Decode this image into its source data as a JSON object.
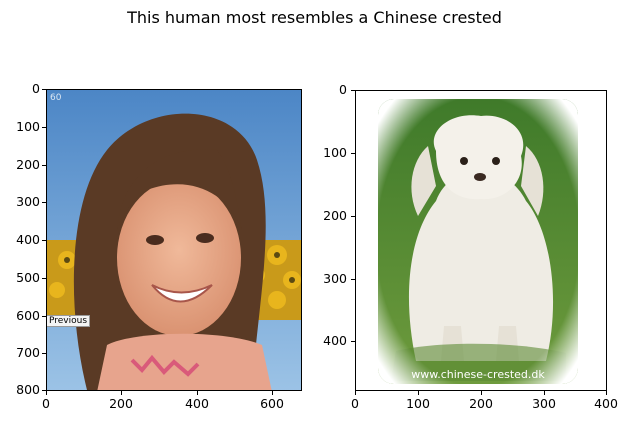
{
  "figure": {
    "suptitle": "This human most resembles a Chinese crested"
  },
  "left_image": {
    "description_icon": "woman-portrait-photo",
    "overlay_number": "60",
    "overlay_button": "Previous",
    "y_ticks": [
      "0",
      "100",
      "200",
      "300",
      "400",
      "500",
      "600",
      "700",
      "800"
    ],
    "x_ticks": [
      "0",
      "200",
      "400",
      "600"
    ]
  },
  "right_image": {
    "description_icon": "white-dog-photo",
    "watermark": "www.chinese-crested.dk",
    "y_ticks": [
      "0",
      "100",
      "200",
      "300",
      "400"
    ],
    "x_ticks": [
      "0",
      "100",
      "200",
      "300",
      "400"
    ]
  }
}
